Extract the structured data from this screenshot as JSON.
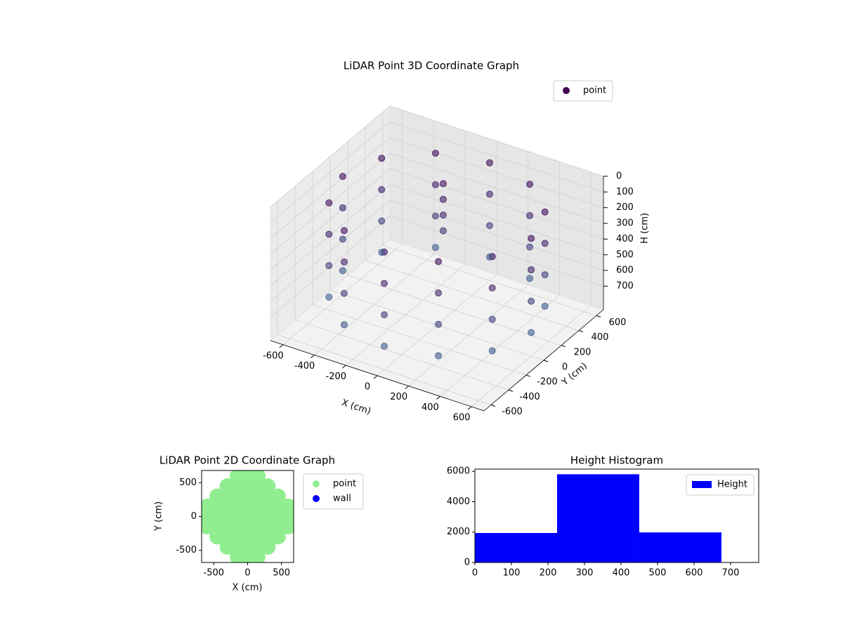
{
  "chart_data": [
    {
      "type": "scatter3d",
      "title": "LiDAR Point 3D Coordinate Graph",
      "xlabel": "X (cm)",
      "ylabel": "Y (cm)",
      "zlabel": "H (cm)",
      "xlim": [
        -680,
        680
      ],
      "ylim": [
        -680,
        680
      ],
      "zlim": [
        850,
        0
      ],
      "xticks": [
        -600,
        -400,
        -200,
        0,
        200,
        400,
        600
      ],
      "yticks": [
        -600,
        -400,
        -200,
        0,
        200,
        400,
        600
      ],
      "zticks": [
        0,
        100,
        200,
        300,
        400,
        500,
        600,
        700
      ],
      "grid": true,
      "legend": "upper right",
      "cmap": [
        "#440154",
        "#3e6e9a"
      ],
      "series": [
        {
          "name": "point",
          "color": "#440154",
          "x": [
            600,
            520,
            300,
            0,
            -300,
            -520,
            -600,
            -520,
            -300,
            0,
            300,
            520,
            600,
            520,
            300,
            0,
            -300,
            -520,
            -600,
            -520,
            -300,
            0,
            300,
            520,
            600,
            520,
            300,
            0,
            -300,
            -520,
            -600,
            -520,
            -300,
            0,
            300,
            520,
            600,
            520,
            300,
            0,
            -300,
            -520,
            -600,
            -520,
            -300,
            0,
            300,
            520,
            -100,
            -100,
            -100,
            -100
          ],
          "y": [
            0,
            300,
            520,
            600,
            520,
            300,
            0,
            -300,
            -520,
            -600,
            -520,
            -300,
            0,
            300,
            520,
            600,
            520,
            300,
            0,
            -300,
            -520,
            -600,
            -520,
            -300,
            0,
            300,
            520,
            600,
            520,
            300,
            0,
            -300,
            -520,
            -600,
            -520,
            -300,
            0,
            300,
            520,
            600,
            520,
            300,
            0,
            -300,
            -520,
            -600,
            -520,
            -300,
            250,
            250,
            250,
            250
          ],
          "h": [
            100,
            100,
            100,
            100,
            100,
            100,
            100,
            100,
            100,
            100,
            100,
            100,
            300,
            300,
            300,
            300,
            300,
            300,
            300,
            300,
            300,
            300,
            300,
            300,
            500,
            500,
            500,
            500,
            500,
            500,
            500,
            500,
            500,
            500,
            500,
            500,
            700,
            700,
            700,
            700,
            700,
            700,
            700,
            700,
            700,
            700,
            700,
            700,
            100,
            200,
            300,
            400
          ]
        }
      ]
    },
    {
      "type": "scatter",
      "title": "LiDAR Point 2D Coordinate Graph",
      "xlabel": "X (cm)",
      "ylabel": "Y (cm)",
      "xlim": [
        -680,
        680
      ],
      "ylim": [
        -680,
        680
      ],
      "xticks": [
        -500,
        0,
        500
      ],
      "yticks": [
        -500,
        0,
        500
      ],
      "legend": "outside right",
      "series": [
        {
          "name": "point",
          "color": "#90ee90",
          "x": [
            -600,
            -600,
            -600,
            -450,
            -450,
            -450,
            -450,
            -450,
            -300,
            -300,
            -300,
            -300,
            -300,
            -300,
            -300,
            -150,
            -150,
            -150,
            -150,
            -150,
            -150,
            -150,
            -150,
            -150,
            0,
            0,
            0,
            0,
            0,
            0,
            0,
            0,
            0,
            150,
            150,
            150,
            150,
            150,
            150,
            150,
            150,
            150,
            300,
            300,
            300,
            300,
            300,
            300,
            300,
            450,
            450,
            450,
            450,
            450,
            600,
            600,
            600
          ],
          "y": [
            -150,
            0,
            150,
            -300,
            -150,
            0,
            150,
            300,
            -450,
            -300,
            -150,
            0,
            150,
            300,
            450,
            -600,
            -450,
            -300,
            -150,
            0,
            150,
            300,
            450,
            600,
            -600,
            -450,
            -300,
            -150,
            0,
            150,
            300,
            450,
            600,
            -600,
            -450,
            -300,
            -150,
            0,
            150,
            300,
            450,
            600,
            -450,
            -300,
            -150,
            0,
            150,
            300,
            450,
            -300,
            -150,
            0,
            150,
            300,
            -150,
            0,
            150
          ]
        },
        {
          "name": "wall",
          "color": "#0000ff",
          "x": [],
          "y": []
        }
      ]
    },
    {
      "type": "histogram",
      "title": "Height Histogram",
      "bins": [
        0,
        225,
        450,
        675
      ],
      "xlim": [
        0,
        777
      ],
      "ylim": [
        0,
        6150
      ],
      "xticks": [
        0,
        100,
        200,
        300,
        400,
        500,
        600,
        700
      ],
      "yticks": [
        0,
        2000,
        4000,
        6000
      ],
      "legend": "upper right",
      "series": [
        {
          "name": "Height",
          "color": "#0000ff",
          "counts": [
            1940,
            5810,
            1980
          ]
        }
      ]
    }
  ]
}
